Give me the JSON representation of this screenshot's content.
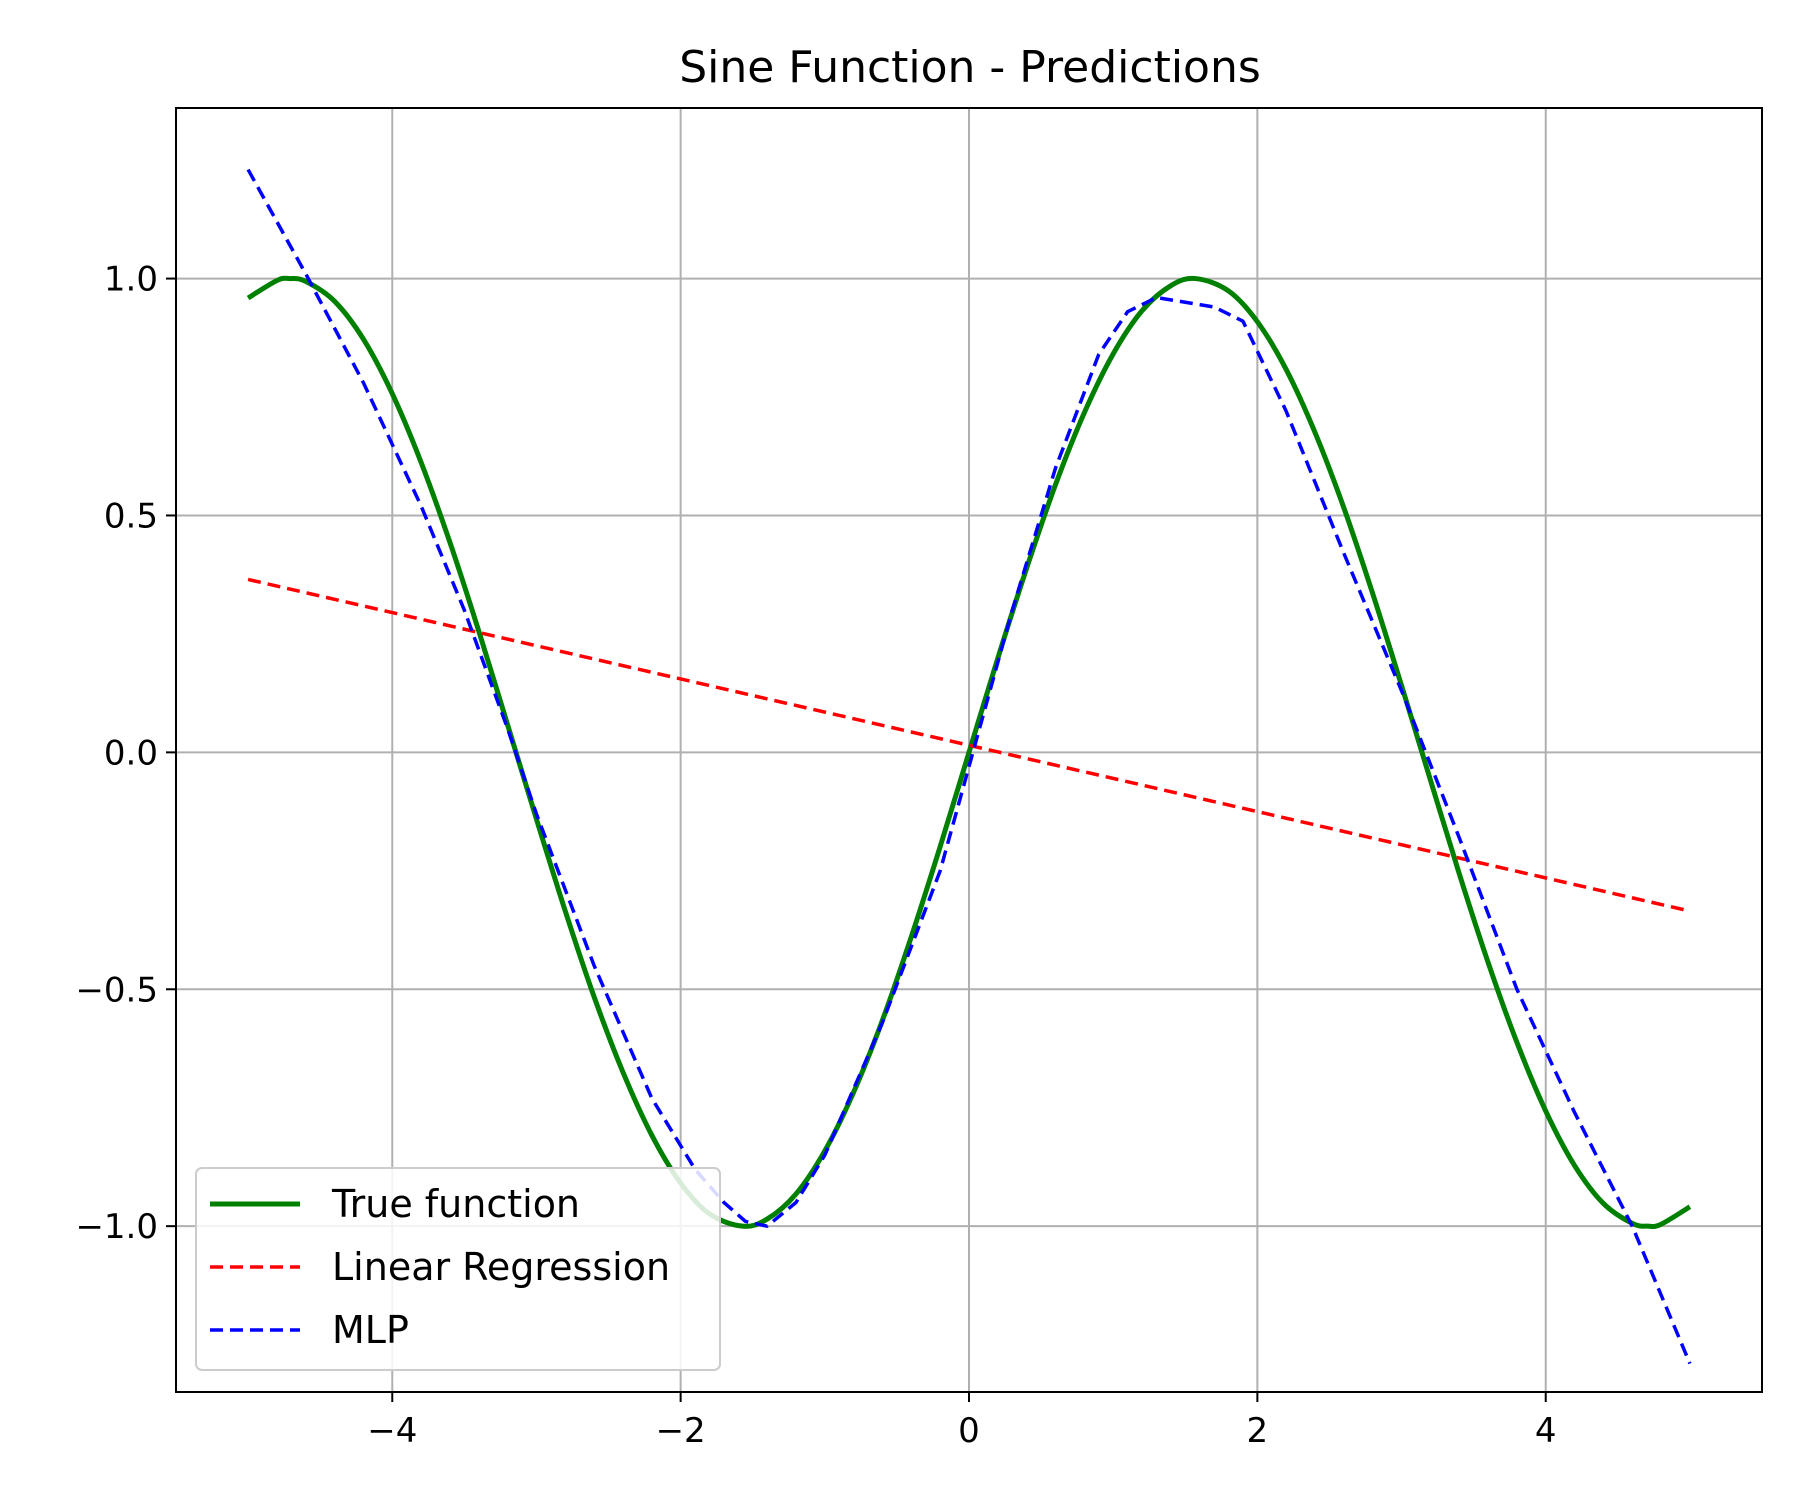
{
  "chart_data": {
    "type": "line",
    "title": "Sine Function - Predictions",
    "xlabel": "",
    "ylabel": "",
    "xlim": [
      -5.5,
      5.5
    ],
    "ylim": [
      -1.35,
      1.36
    ],
    "x_ticks": [
      -4,
      -2,
      0,
      2,
      4
    ],
    "x_tick_labels": [
      "−4",
      "−2",
      "0",
      "2",
      "4"
    ],
    "y_ticks": [
      -1.0,
      -0.5,
      0.0,
      0.5,
      1.0
    ],
    "y_tick_labels": [
      "−1.0",
      "−0.5",
      "0.0",
      "0.5",
      "1.0"
    ],
    "grid": true,
    "legend_position": "lower-left",
    "series": [
      {
        "name": "True function",
        "color": "#008000",
        "style": "solid",
        "x": [
          -5.0,
          -4.8,
          -4.71,
          -4.6,
          -4.4,
          -4.2,
          -4.0,
          -3.8,
          -3.6,
          -3.4,
          -3.2,
          -3.0,
          -2.8,
          -2.6,
          -2.4,
          -2.2,
          -2.0,
          -1.8,
          -1.571,
          -1.4,
          -1.2,
          -1.0,
          -0.8,
          -0.6,
          -0.4,
          -0.2,
          0.0,
          0.2,
          0.4,
          0.6,
          0.8,
          1.0,
          1.2,
          1.4,
          1.571,
          1.8,
          2.0,
          2.2,
          2.4,
          2.6,
          2.8,
          3.0,
          3.2,
          3.4,
          3.6,
          3.8,
          4.0,
          4.2,
          4.4,
          4.6,
          4.71,
          4.8,
          5.0
        ],
        "y": [
          0.959,
          0.996,
          1.0,
          0.994,
          0.952,
          0.872,
          0.757,
          0.612,
          0.443,
          0.256,
          0.058,
          -0.141,
          -0.335,
          -0.516,
          -0.675,
          -0.808,
          -0.909,
          -0.974,
          -1.0,
          -0.985,
          -0.932,
          -0.841,
          -0.717,
          -0.565,
          -0.389,
          -0.199,
          0.0,
          0.199,
          0.389,
          0.565,
          0.717,
          0.841,
          0.932,
          0.985,
          1.0,
          0.974,
          0.909,
          0.808,
          0.675,
          0.516,
          0.335,
          0.141,
          -0.058,
          -0.256,
          -0.443,
          -0.612,
          -0.757,
          -0.872,
          -0.952,
          -0.994,
          -1.0,
          -0.996,
          -0.959
        ]
      },
      {
        "name": "Linear Regression",
        "color": "#ff0000",
        "style": "dashed",
        "x": [
          -5.0,
          5.0
        ],
        "y": [
          0.365,
          -0.335
        ]
      },
      {
        "name": "MLP",
        "color": "#0000ff",
        "style": "dashed",
        "x": [
          -5.0,
          -4.6,
          -4.2,
          -3.8,
          -3.5,
          -3.2,
          -3.0,
          -2.6,
          -2.2,
          -1.9,
          -1.7,
          -1.55,
          -1.4,
          -1.2,
          -1.0,
          -0.6,
          -0.2,
          0.0,
          0.3,
          0.6,
          0.9,
          1.1,
          1.3,
          1.5,
          1.7,
          1.9,
          2.2,
          2.6,
          3.0,
          3.4,
          3.8,
          4.2,
          4.6,
          5.0
        ],
        "y": [
          1.23,
          1.01,
          0.78,
          0.52,
          0.3,
          0.05,
          -0.13,
          -0.45,
          -0.73,
          -0.88,
          -0.95,
          -0.99,
          -1.0,
          -0.95,
          -0.85,
          -0.57,
          -0.25,
          -0.03,
          0.3,
          0.6,
          0.84,
          0.93,
          0.96,
          0.95,
          0.94,
          0.91,
          0.72,
          0.42,
          0.13,
          -0.18,
          -0.5,
          -0.76,
          -1.0,
          -1.29
        ]
      }
    ]
  }
}
